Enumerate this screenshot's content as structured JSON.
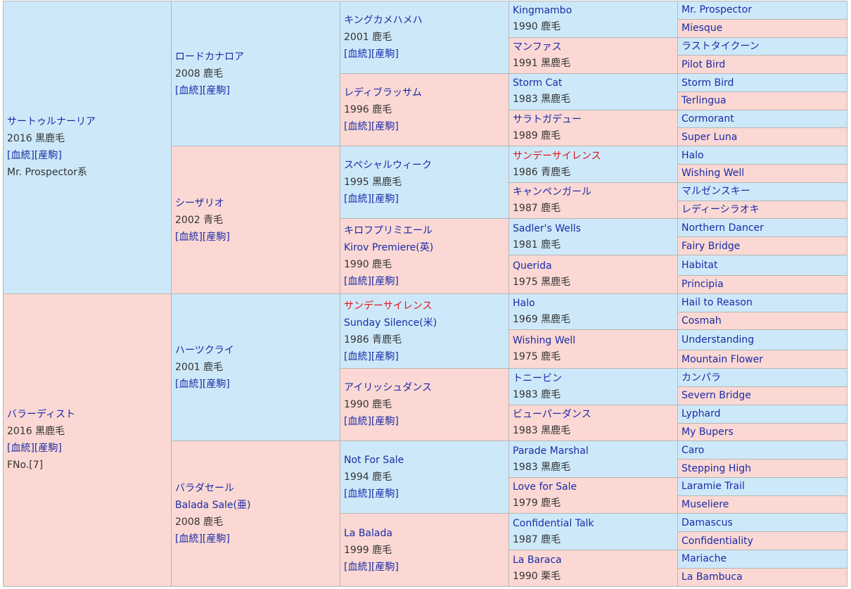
{
  "pedigree": {
    "sire": {
      "name": "サートゥルナーリア",
      "info": "2016 黒鹿毛",
      "links": "[血統][産駒]",
      "line": "Mr. Prospector系"
    },
    "dam": {
      "name": "バラーディスト",
      "info": "2016 黒鹿毛",
      "links": "[血統][産駒]",
      "family": "FNo.[7]"
    },
    "gen2": [
      {
        "name": "ロードカナロア",
        "info": "2008 鹿毛",
        "links": "[血統][産駒]"
      },
      {
        "name": "シーザリオ",
        "info": "2002 青毛",
        "links": "[血統][産駒]"
      },
      {
        "name": "ハーツクライ",
        "info": "2001 鹿毛",
        "links": "[血統][産駒]"
      },
      {
        "name": "バラダセール",
        "name2": "Balada Sale(亜)",
        "info": "2008 鹿毛",
        "links": "[血統][産駒]"
      }
    ],
    "gen3": [
      {
        "name": "キングカメハメハ",
        "info": "2001 鹿毛",
        "links": "[血統][産駒]"
      },
      {
        "name": "レディブラッサム",
        "info": "1996 鹿毛",
        "links": "[血統][産駒]"
      },
      {
        "name": "スペシャルウィーク",
        "info": "1995 黒鹿毛",
        "links": "[血統][産駒]"
      },
      {
        "name": "キロフプリミエール",
        "name2": "Kirov Premiere(英)",
        "info": "1990 鹿毛",
        "links": "[血統][産駒]"
      },
      {
        "name": "サンデーサイレンス",
        "name2": "Sunday Silence(米)",
        "info": "1986 青鹿毛",
        "links": "[血統][産駒]"
      },
      {
        "name": "アイリッシュダンス",
        "info": "1990 鹿毛",
        "links": "[血統][産駒]"
      },
      {
        "name": "Not For Sale",
        "info": "1994 鹿毛",
        "links": "[血統][産駒]"
      },
      {
        "name": "La Balada",
        "info": "1999 鹿毛",
        "links": "[血統][産駒]"
      }
    ],
    "gen4": [
      {
        "name": "Kingmambo",
        "info": "1990 鹿毛"
      },
      {
        "name": "マンファス",
        "info": "1991 黒鹿毛"
      },
      {
        "name": "Storm Cat",
        "info": "1983 黒鹿毛"
      },
      {
        "name": "サラトガデュー",
        "info": "1989 鹿毛"
      },
      {
        "name": "サンデーサイレンス",
        "info": "1986 青鹿毛"
      },
      {
        "name": "キャンペンガール",
        "info": "1987 鹿毛"
      },
      {
        "name": "Sadler's Wells",
        "info": "1981 鹿毛"
      },
      {
        "name": "Querida",
        "info": "1975 黒鹿毛"
      },
      {
        "name": "Halo",
        "info": "1969 黒鹿毛"
      },
      {
        "name": "Wishing Well",
        "info": "1975 鹿毛"
      },
      {
        "name": "トニービン",
        "info": "1983 鹿毛"
      },
      {
        "name": "ビューパーダンス",
        "info": "1983 黒鹿毛"
      },
      {
        "name": "Parade Marshal",
        "info": "1983 黒鹿毛"
      },
      {
        "name": "Love for Sale",
        "info": "1979 鹿毛"
      },
      {
        "name": "Confidential Talk",
        "info": "1987 鹿毛"
      },
      {
        "name": "La Baraca",
        "info": "1990 栗毛"
      }
    ],
    "gen5": [
      "Mr. Prospector",
      "Miesque",
      "ラストタイクーン",
      "Pilot Bird",
      "Storm Bird",
      "Terlingua",
      "Cormorant",
      "Super Luna",
      "Halo",
      "Wishing Well",
      "マルゼンスキー",
      "レディーシラオキ",
      "Northern Dancer",
      "Fairy Bridge",
      "Habitat",
      "Principia",
      "Hail to Reason",
      "Cosmah",
      "Understanding",
      "Mountain Flower",
      "カンパラ",
      "Severn Bridge",
      "Lyphard",
      "My Bupers",
      "Caro",
      "Stepping High",
      "Laramie Trail",
      "Museliere",
      "Damascus",
      "Confidentiality",
      "Mariache",
      "La Bambuca"
    ]
  },
  "colors": {
    "male_bg": "#cde9f9",
    "female_bg": "#fbd8d3",
    "link": "#1a2ba8",
    "highlight": "#e0141e",
    "border": "#b6b6b6"
  }
}
